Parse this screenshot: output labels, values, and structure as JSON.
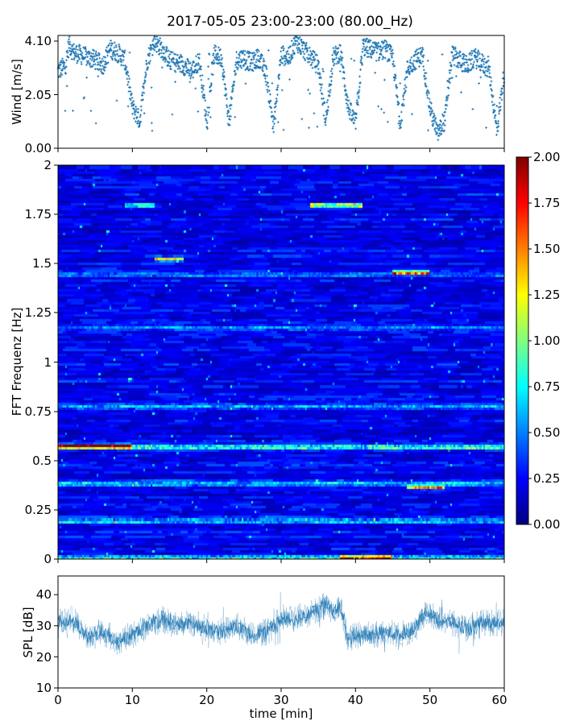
{
  "figure": {
    "title": "2017-05-05 23:00-23:00 (80.00_Hz)"
  },
  "chart_data": [
    {
      "id": "wind",
      "type": "scatter",
      "ylabel": "Wind [m/s]",
      "xlim": [
        0,
        60
      ],
      "ylim": [
        0,
        4.1
      ],
      "yticks": [
        {
          "value": 0,
          "label": "0.00"
        },
        {
          "value": 2.05,
          "label": "2.05"
        },
        {
          "value": 4.1,
          "label": "4.10"
        }
      ],
      "xticks_values": [
        0,
        10,
        20,
        30,
        40,
        50,
        60
      ],
      "series_color": "#1f77b4",
      "profile": {
        "x": [
          0,
          1,
          1.5,
          2,
          3,
          4,
          5,
          6,
          7,
          8,
          9,
          10,
          11,
          12,
          13,
          14,
          15,
          16,
          17,
          18,
          19,
          20,
          21,
          22,
          23,
          24,
          25,
          26,
          27,
          28,
          29,
          30,
          31,
          32,
          33,
          34,
          35,
          36,
          37,
          38,
          39,
          40,
          41,
          42,
          43,
          44,
          45,
          46,
          47,
          48,
          49,
          50,
          51,
          52,
          53,
          54,
          55,
          56,
          57,
          58,
          59,
          60
        ],
        "y": [
          2.8,
          3.0,
          3.8,
          3.5,
          3.4,
          3.3,
          3.2,
          3.0,
          3.6,
          3.5,
          3.2,
          1.5,
          1.0,
          3.2,
          3.9,
          3.6,
          3.2,
          3.1,
          3.0,
          2.8,
          3.2,
          1.0,
          3.4,
          3.3,
          0.9,
          3.2,
          3.3,
          3.1,
          3.3,
          2.7,
          0.8,
          3.4,
          3.3,
          3.9,
          3.6,
          3.3,
          3.0,
          1.0,
          3.3,
          3.5,
          1.5,
          0.9,
          3.7,
          3.6,
          3.5,
          3.6,
          3.3,
          0.9,
          2.9,
          3.2,
          3.4,
          1.5,
          0.5,
          1.0,
          3.4,
          3.2,
          3.0,
          3.3,
          3.1,
          2.8,
          0.6,
          2.8
        ]
      },
      "samples_per_minute": 30,
      "spread": 0.35
    },
    {
      "id": "spectrogram",
      "type": "heatmap",
      "ylabel": "FFT Frequenz [Hz]",
      "xlim": [
        0,
        60
      ],
      "ylim": [
        0,
        2
      ],
      "yticks": [
        {
          "value": 0,
          "label": "0"
        },
        {
          "value": 0.25,
          "label": "0.25"
        },
        {
          "value": 0.5,
          "label": "0.5"
        },
        {
          "value": 0.75,
          "label": "0.75"
        },
        {
          "value": 1.0,
          "label": "1"
        },
        {
          "value": 1.25,
          "label": "1.25"
        },
        {
          "value": 1.5,
          "label": "1.5"
        },
        {
          "value": 1.75,
          "label": "1.75"
        },
        {
          "value": 2.0,
          "label": "2"
        }
      ],
      "colormap": "jet",
      "clim": [
        0,
        2
      ],
      "colorbar_ticks": [
        "0.00",
        "0.25",
        "0.50",
        "0.75",
        "1.00",
        "1.25",
        "1.50",
        "1.75",
        "2.00"
      ],
      "time_bins": 240,
      "freq_bins": 160,
      "background_level": 0.22,
      "bands": [
        {
          "f": 0.01,
          "level": 0.9
        },
        {
          "f": 0.2,
          "level": 0.65
        },
        {
          "f": 0.39,
          "level": 0.55
        },
        {
          "f": 0.575,
          "level": 0.95
        },
        {
          "f": 0.78,
          "level": 0.45
        },
        {
          "f": 1.18,
          "level": 0.4
        },
        {
          "f": 1.45,
          "level": 0.35
        }
      ],
      "hotspots": [
        {
          "t0": 0,
          "t1": 10,
          "f": 0.58,
          "level": 1.8
        },
        {
          "t0": 34,
          "t1": 41,
          "f": 1.8,
          "level": 1.6
        },
        {
          "t0": 13,
          "t1": 17,
          "f": 1.53,
          "level": 1.4
        },
        {
          "t0": 45,
          "t1": 50,
          "f": 1.46,
          "level": 1.8
        },
        {
          "t0": 38,
          "t1": 45,
          "f": 0.01,
          "level": 1.9
        },
        {
          "t0": 9,
          "t1": 13,
          "f": 1.8,
          "level": 1.0
        },
        {
          "t0": 47,
          "t1": 52,
          "f": 0.37,
          "level": 1.5
        }
      ]
    },
    {
      "id": "spl",
      "type": "line",
      "ylabel": "SPL [dB]",
      "xlabel": "time [min]",
      "xlim": [
        0,
        60
      ],
      "ylim": [
        10,
        46
      ],
      "yticks": [
        {
          "value": 10,
          "label": "10"
        },
        {
          "value": 20,
          "label": "20"
        },
        {
          "value": 30,
          "label": "30"
        },
        {
          "value": 40,
          "label": "40"
        }
      ],
      "xticks": [
        {
          "value": 0,
          "label": "0"
        },
        {
          "value": 10,
          "label": "10"
        },
        {
          "value": 20,
          "label": "20"
        },
        {
          "value": 30,
          "label": "30"
        },
        {
          "value": 40,
          "label": "40"
        },
        {
          "value": 50,
          "label": "50"
        },
        {
          "value": 60,
          "label": "60"
        }
      ],
      "series_color": "#1f77b4",
      "profile": {
        "x": [
          0,
          2,
          4,
          6,
          8,
          10,
          12,
          14,
          16,
          18,
          20,
          22,
          24,
          26,
          28,
          30,
          32,
          34,
          36,
          37,
          38,
          39,
          40,
          42,
          44,
          46,
          48,
          49.5,
          51,
          53,
          55,
          57,
          60
        ],
        "y": [
          31,
          32,
          26,
          28,
          25,
          27,
          30,
          32,
          30,
          31,
          29,
          28,
          30,
          27,
          28,
          32,
          32,
          34,
          37,
          35,
          36,
          25,
          27,
          27,
          28,
          27,
          29,
          35,
          32,
          31,
          29,
          31,
          31
        ]
      },
      "noise": 3.2,
      "points": 900
    }
  ]
}
